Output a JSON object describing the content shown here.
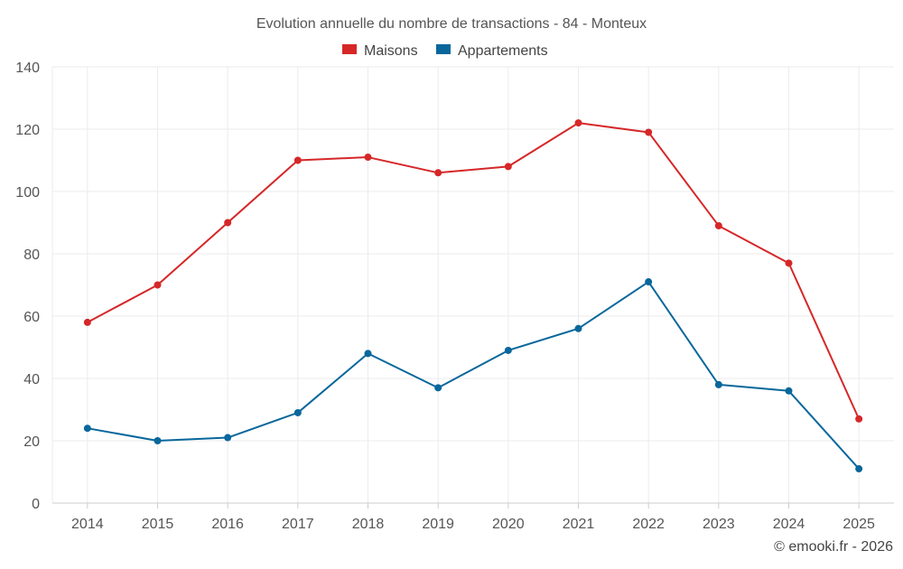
{
  "chart_data": {
    "type": "line",
    "title": "Evolution annuelle du nombre de transactions - 84 - Monteux",
    "categories": [
      "2014",
      "2015",
      "2016",
      "2017",
      "2018",
      "2019",
      "2020",
      "2021",
      "2022",
      "2023",
      "2024",
      "2025"
    ],
    "series": [
      {
        "name": "Maisons",
        "color": "#d62728",
        "values": [
          58,
          70,
          90,
          110,
          111,
          106,
          108,
          122,
          119,
          89,
          77,
          27
        ]
      },
      {
        "name": "Appartements",
        "color": "#08679b",
        "values": [
          24,
          20,
          21,
          29,
          48,
          37,
          49,
          56,
          71,
          38,
          36,
          11
        ]
      }
    ],
    "ylim": [
      0,
      140
    ],
    "yticks": [
      0,
      20,
      40,
      60,
      80,
      100,
      120,
      140
    ],
    "xlabel": "",
    "ylabel": "",
    "grid": true,
    "legend": "top-center"
  },
  "credit": "© emooki.fr - 2026"
}
